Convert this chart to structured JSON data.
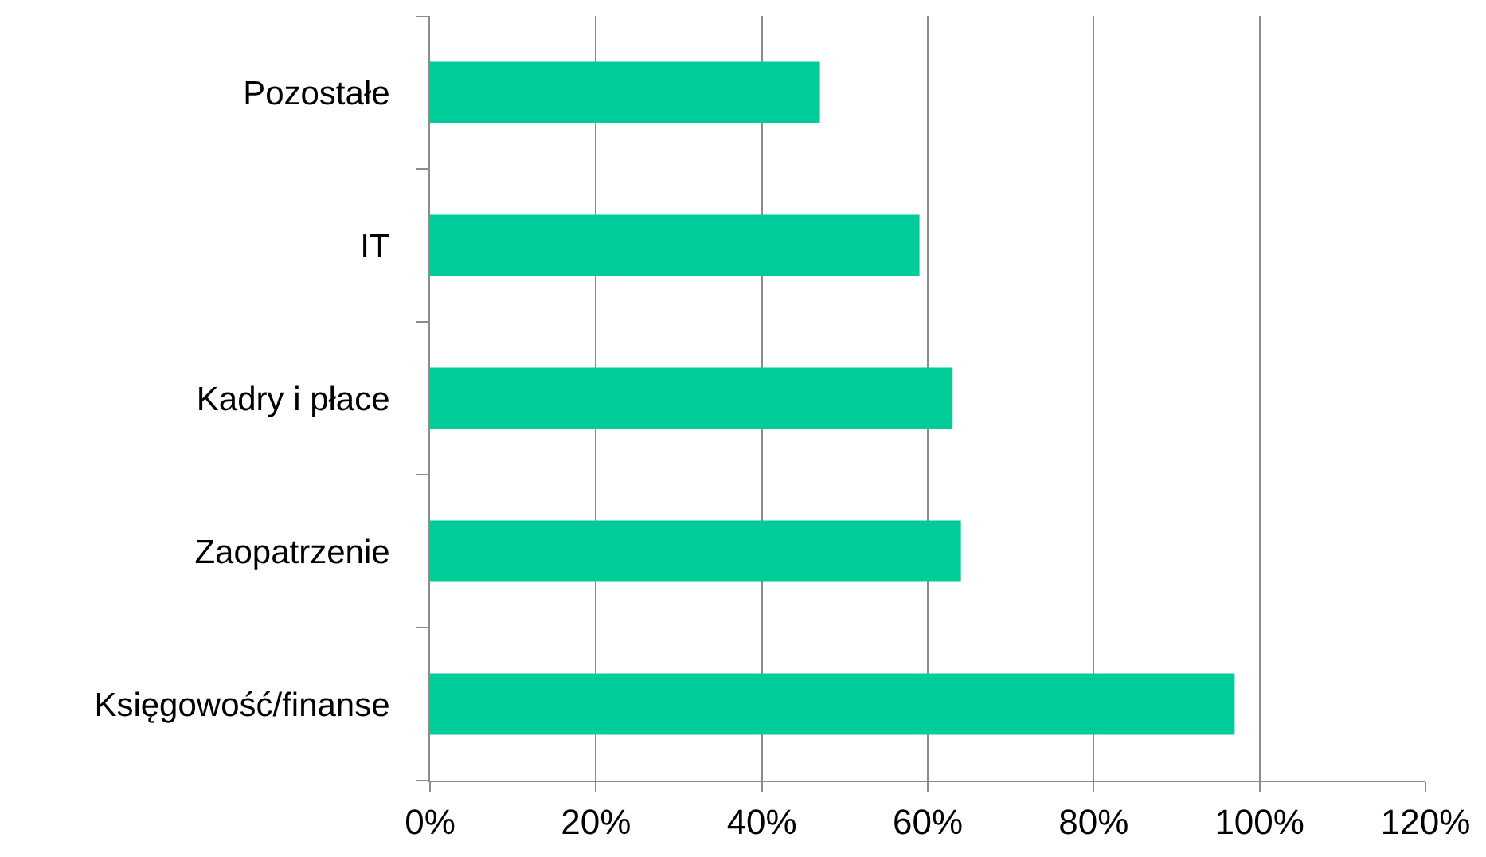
{
  "chart_data": {
    "type": "bar",
    "orientation": "horizontal",
    "categories": [
      "Pozostałe",
      "IT",
      "Kadry i płace",
      "Zaopatrzenie",
      "Księgowość/finanse"
    ],
    "values": [
      47,
      59,
      63,
      64,
      97
    ],
    "color": "#00cc99",
    "xlim": [
      0,
      120
    ],
    "xticks": [
      {
        "value": 0,
        "label": "0%"
      },
      {
        "value": 20,
        "label": "20%"
      },
      {
        "value": 40,
        "label": "40%"
      },
      {
        "value": 60,
        "label": "60%"
      },
      {
        "value": 80,
        "label": "80%"
      },
      {
        "value": 100,
        "label": "100%"
      },
      {
        "value": 120,
        "label": "120%"
      }
    ],
    "grid": "x",
    "legend": false
  }
}
